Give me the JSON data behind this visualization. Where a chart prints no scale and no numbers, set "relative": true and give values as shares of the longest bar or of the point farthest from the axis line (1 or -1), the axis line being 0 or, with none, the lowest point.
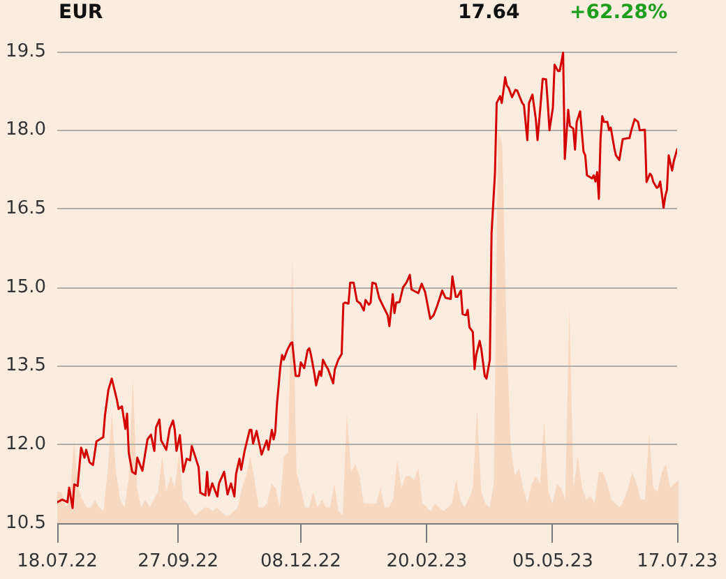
{
  "chart_data": [
    {
      "type": "line",
      "ylabel": "EUR",
      "annotations": [
        "17.64",
        "+62.28%"
      ],
      "color": "#d40000",
      "grid": "y",
      "xlim": [
        "2022-07-18",
        "2023-07-17"
      ],
      "xticks": [
        {
          "value": "2022-07-18",
          "label": "18.07.22"
        },
        {
          "value": "2022-09-27",
          "label": "27.09.22"
        },
        {
          "value": "2022-12-08",
          "label": "08.12.22"
        },
        {
          "value": "2023-02-20",
          "label": "20.02.23"
        },
        {
          "value": "2023-05-05",
          "label": "05.05.23"
        },
        {
          "value": "2023-07-17",
          "label": "17.07.23"
        }
      ],
      "ylim": [
        10.5,
        19.5
      ],
      "yticks": [
        10.5,
        {
          "value": 12,
          "label": "12.0"
        },
        13.5,
        {
          "value": 15,
          "label": "15.0"
        },
        16.5,
        {
          "value": 18,
          "label": "18.0"
        },
        19.5
      ],
      "x": [
        "2022-07-18",
        "2022-07-21",
        "2022-07-24",
        "2022-07-25",
        "2022-07-27",
        "2022-07-28",
        "2022-07-30",
        "2022-08-01",
        "2022-08-03",
        "2022-08-04",
        "2022-08-06",
        "2022-08-08",
        "2022-08-10",
        "2022-08-14",
        "2022-08-15",
        "2022-08-17",
        "2022-08-19",
        "2022-08-22",
        "2022-08-23",
        "2022-08-25",
        "2022-08-27",
        "2022-08-28",
        "2022-08-29",
        "2022-08-31",
        "2022-09-02",
        "2022-09-03",
        "2022-09-06",
        "2022-09-09",
        "2022-09-11",
        "2022-09-13",
        "2022-09-14",
        "2022-09-16",
        "2022-09-17",
        "2022-09-20",
        "2022-09-22",
        "2022-09-24",
        "2022-09-25",
        "2022-09-26",
        "2022-09-28",
        "2022-09-30",
        "2022-10-02",
        "2022-10-04",
        "2022-10-05",
        "2022-10-09",
        "2022-10-10",
        "2022-10-13",
        "2022-10-14",
        "2022-10-15",
        "2022-10-17",
        "2022-10-20",
        "2022-10-21",
        "2022-10-24",
        "2022-10-26",
        "2022-10-28",
        "2022-10-30",
        "2022-10-31",
        "2022-11-02",
        "2022-11-03",
        "2022-11-05",
        "2022-11-08",
        "2022-11-09",
        "2022-11-10",
        "2022-11-12",
        "2022-11-15",
        "2022-11-18",
        "2022-11-19",
        "2022-11-21",
        "2022-11-22",
        "2022-11-23",
        "2022-11-24",
        "2022-11-26",
        "2022-11-27",
        "2022-11-28",
        "2022-11-30",
        "2022-12-02",
        "2022-12-03",
        "2022-12-05",
        "2022-12-07",
        "2022-12-08",
        "2022-12-10",
        "2022-12-12",
        "2022-12-13",
        "2022-12-14",
        "2022-12-16",
        "2022-12-17",
        "2022-12-19",
        "2022-12-20",
        "2022-12-21",
        "2022-12-23",
        "2022-12-24",
        "2022-12-27",
        "2022-12-28",
        "2022-12-30",
        "2023-01-01",
        "2023-01-02",
        "2023-01-03",
        "2023-01-05",
        "2023-01-06",
        "2023-01-08",
        "2023-01-10",
        "2023-01-12",
        "2023-01-14",
        "2023-01-15",
        "2023-01-17",
        "2023-01-18",
        "2023-01-19",
        "2023-01-21",
        "2023-01-23",
        "2023-01-26",
        "2023-01-28",
        "2023-01-29",
        "2023-01-31",
        "2023-02-01",
        "2023-02-02",
        "2023-02-04",
        "2023-02-06",
        "2023-02-08",
        "2023-02-10",
        "2023-02-11",
        "2023-02-15",
        "2023-02-17",
        "2023-02-19",
        "2023-02-22",
        "2023-02-24",
        "2023-02-26",
        "2023-03-01",
        "2023-03-03",
        "2023-03-06",
        "2023-03-07",
        "2023-03-09",
        "2023-03-10",
        "2023-03-12",
        "2023-03-13",
        "2023-03-15",
        "2023-03-16",
        "2023-03-17",
        "2023-03-19",
        "2023-03-20",
        "2023-03-21",
        "2023-03-23",
        "2023-03-24",
        "2023-03-26",
        "2023-03-27",
        "2023-03-29",
        "2023-03-30",
        "2023-04-01",
        "2023-04-02",
        "2023-04-04",
        "2023-04-05",
        "2023-04-07",
        "2023-04-08",
        "2023-04-09",
        "2023-04-11",
        "2023-04-13",
        "2023-04-14",
        "2023-04-17",
        "2023-04-18",
        "2023-04-20",
        "2023-04-21",
        "2023-04-23",
        "2023-04-25",
        "2023-04-26",
        "2023-04-28",
        "2023-04-29",
        "2023-05-01",
        "2023-05-02",
        "2023-05-03",
        "2023-05-05",
        "2023-05-06",
        "2023-05-08",
        "2023-05-09",
        "2023-05-11",
        "2023-05-12",
        "2023-05-14",
        "2023-05-15",
        "2023-05-17",
        "2023-05-18",
        "2023-05-19",
        "2023-05-21",
        "2023-05-23",
        "2023-05-24",
        "2023-05-25",
        "2023-05-28",
        "2023-05-29",
        "2023-05-30",
        "2023-05-31",
        "2023-06-01",
        "2023-06-02",
        "2023-06-03",
        "2023-06-04",
        "2023-06-06",
        "2023-06-07",
        "2023-06-08",
        "2023-06-10",
        "2023-06-11",
        "2023-06-13",
        "2023-06-15",
        "2023-06-18",
        "2023-06-19",
        "2023-06-20",
        "2023-06-22",
        "2023-06-24",
        "2023-06-25",
        "2023-06-28",
        "2023-06-29",
        "2023-07-01",
        "2023-07-02",
        "2023-07-03",
        "2023-07-05",
        "2023-07-06",
        "2023-07-07",
        "2023-07-08",
        "2023-07-09",
        "2023-07-10",
        "2023-07-11",
        "2023-07-12",
        "2023-07-14",
        "2023-07-15",
        "2023-07-17"
      ],
      "values": [
        10.9,
        10.95,
        10.9,
        11.18,
        10.79,
        11.24,
        11.21,
        11.94,
        11.75,
        11.9,
        11.66,
        11.61,
        12.06,
        12.14,
        12.55,
        13.04,
        13.26,
        12.86,
        12.68,
        12.73,
        12.3,
        12.59,
        11.84,
        11.48,
        11.44,
        11.75,
        11.5,
        12.1,
        12.19,
        11.88,
        12.33,
        12.48,
        12.08,
        11.9,
        12.3,
        12.46,
        12.28,
        11.88,
        12.18,
        11.48,
        11.73,
        11.7,
        11.97,
        11.57,
        11.08,
        11.03,
        11.48,
        11.03,
        11.26,
        11.01,
        11.26,
        11.48,
        11.05,
        11.26,
        11.01,
        11.44,
        11.73,
        11.52,
        11.88,
        12.28,
        12.28,
        12.02,
        12.26,
        11.81,
        12.08,
        11.9,
        12.28,
        12.1,
        12.24,
        12.77,
        13.49,
        13.71,
        13.62,
        13.8,
        13.93,
        13.95,
        13.31,
        13.31,
        13.57,
        13.46,
        13.8,
        13.84,
        13.71,
        13.35,
        13.13,
        13.4,
        13.31,
        13.62,
        13.49,
        13.44,
        13.17,
        13.44,
        13.62,
        13.73,
        14.69,
        14.71,
        14.69,
        15.09,
        15.09,
        14.74,
        14.69,
        14.56,
        14.76,
        14.67,
        14.71,
        15.09,
        15.07,
        14.8,
        14.6,
        14.47,
        14.26,
        14.87,
        14.51,
        14.71,
        14.72,
        15.0,
        15.09,
        15.24,
        14.96,
        14.89,
        15.07,
        14.91,
        14.4,
        14.47,
        14.64,
        14.94,
        14.8,
        14.78,
        15.21,
        14.82,
        14.82,
        14.94,
        14.49,
        14.47,
        14.57,
        14.24,
        14.15,
        13.44,
        13.71,
        13.98,
        13.82,
        13.31,
        13.26,
        13.62,
        16.03,
        17.18,
        18.52,
        18.65,
        18.52,
        19.01,
        18.85,
        18.81,
        18.63,
        18.77,
        18.76,
        18.52,
        18.48,
        17.81,
        18.52,
        18.68,
        18.21,
        17.81,
        18.57,
        18.98,
        18.97,
        18.52,
        18.0,
        18.43,
        19.25,
        19.13,
        19.13,
        19.48,
        17.45,
        18.39,
        18.08,
        18.03,
        17.63,
        18.16,
        18.36,
        17.59,
        17.52,
        17.14,
        17.08,
        17.14,
        17.02,
        17.2,
        16.69,
        17.85,
        18.27,
        18.16,
        18.16,
        18.0,
        18.05,
        17.67,
        17.52,
        17.43,
        17.83,
        17.85,
        17.85,
        17.99,
        18.21,
        18.16,
        18.0,
        18.01,
        17.01,
        17.17,
        17.13,
        17.01,
        16.9,
        16.92,
        17.02,
        16.78,
        16.52,
        16.74,
        16.87,
        17.52,
        17.23,
        17.41,
        17.64
      ]
    },
    {
      "type": "area",
      "relative": true,
      "color": "#f7d8c1",
      "categories": [
        null,
        null,
        null,
        null,
        null,
        null,
        null,
        null,
        null,
        null,
        null,
        null,
        null,
        null,
        null,
        null,
        null,
        null,
        null,
        null,
        null,
        null,
        null,
        null,
        null,
        null,
        null,
        null,
        null,
        null,
        null,
        null,
        null,
        null,
        null,
        null,
        null,
        null,
        null,
        null,
        null,
        null,
        null,
        null,
        null,
        null,
        null,
        null,
        null,
        null,
        null,
        null,
        null,
        null,
        null,
        null,
        null,
        null,
        null,
        null,
        null,
        null,
        null,
        null,
        null,
        null,
        null,
        null,
        null,
        null,
        null,
        null,
        null,
        null,
        null,
        null,
        null,
        null,
        null,
        null,
        null,
        null,
        null,
        null,
        null,
        null,
        null,
        null,
        null,
        null,
        null,
        null,
        null,
        null,
        null,
        null,
        null,
        null,
        null,
        null,
        null,
        null,
        null,
        null,
        null,
        null,
        null,
        null,
        null,
        null,
        null,
        null,
        null,
        null,
        null,
        null,
        null,
        null,
        null,
        null,
        null,
        null,
        null,
        null,
        null,
        null,
        null,
        null,
        null,
        null,
        null,
        null,
        null,
        null,
        null,
        null,
        null,
        null,
        null,
        null,
        null,
        null,
        null,
        null,
        null,
        null,
        null,
        null,
        null
      ],
      "values": [
        0.08,
        0.08,
        0.04,
        0.06,
        0.21,
        0.09,
        0.06,
        0.04,
        0.04,
        0.06,
        0.04,
        0.03,
        0.13,
        0.28,
        0.13,
        0.06,
        0.04,
        0.11,
        0.37,
        0.09,
        0.04,
        0.06,
        0.04,
        0.06,
        0.08,
        0.17,
        0.08,
        0.12,
        0.09,
        0.18,
        0.06,
        0.05,
        0.03,
        0.02,
        0.03,
        0.04,
        0.04,
        0.03,
        0.04,
        0.03,
        0.02,
        0.02,
        0.03,
        0.04,
        0.09,
        0.12,
        0.17,
        0.11,
        0.04,
        0.04,
        0.05,
        0.1,
        0.09,
        0.04,
        0.17,
        0.18,
        0.68,
        0.13,
        0.09,
        0.04,
        0.04,
        0.08,
        0.04,
        0.06,
        0.04,
        0.04,
        0.1,
        0.03,
        0.02,
        0.28,
        0.13,
        0.15,
        0.12,
        0.05,
        0.05,
        0.05,
        0.05,
        0.09,
        0.04,
        0.04,
        0.06,
        0.16,
        0.09,
        0.12,
        0.12,
        0.11,
        0.14,
        0.05,
        0.04,
        0.03,
        0.05,
        0.04,
        0.03,
        0.04,
        0.05,
        0.11,
        0.06,
        0.04,
        0.06,
        0.09,
        0.29,
        0.08,
        0.05,
        0.04,
        0.1,
        1,
        0.96,
        0.5,
        0.2,
        0.12,
        0.14,
        0.09,
        0.05,
        0.1,
        0.12,
        0.1,
        0.26,
        0.08,
        0.05,
        0.1,
        0.09,
        0.06,
        0.55,
        0.09,
        0.17,
        0.09,
        0.06,
        0.07,
        0.05,
        0.13,
        0.13,
        0.1,
        0.06,
        0.05,
        0.04,
        0.06,
        0.09,
        0.13,
        0.1,
        0.06,
        0.06,
        0.23,
        0.09,
        0.08,
        0.13,
        0.15,
        0.09,
        0.1,
        0.11
      ]
    }
  ]
}
